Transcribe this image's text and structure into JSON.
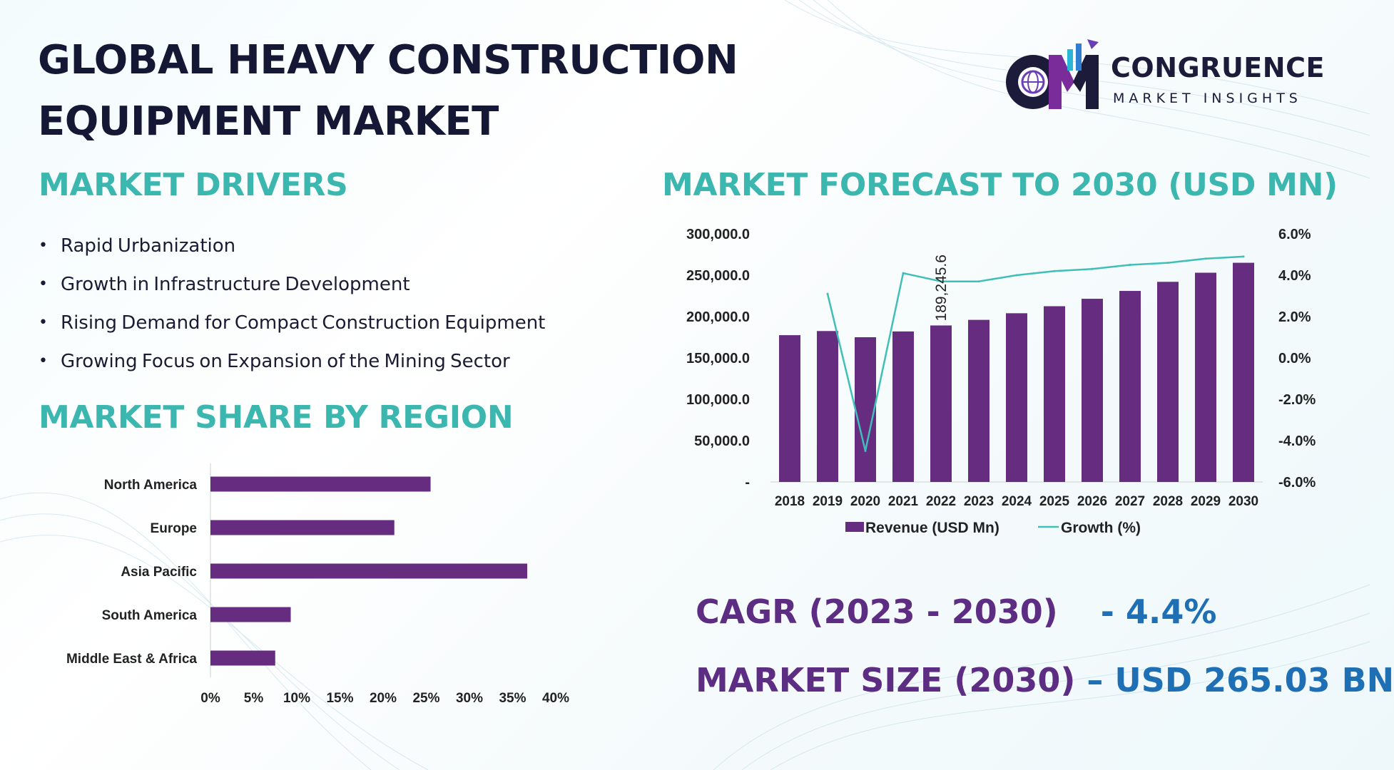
{
  "title": {
    "line1": "GLOBAL HEAVY CONSTRUCTION",
    "line2": "EQUIPMENT MARKET"
  },
  "logo": {
    "name": "CONGRUENCE",
    "tagline": "MARKET INSIGHTS"
  },
  "drivers": {
    "heading": "MARKET DRIVERS",
    "items": [
      "Rapid Urbanization",
      "Growth in Infrastructure Development",
      "Rising Demand for Compact Construction Equipment",
      "Growing Focus on Expansion of the Mining Sector"
    ]
  },
  "region": {
    "heading": "MARKET SHARE BY REGION"
  },
  "forecast": {
    "heading": "MARKET FORECAST TO 2030 (USD MN)"
  },
  "stats": {
    "cagr_label": "CAGR (2023 - 2030)",
    "cagr_value": "- 4.4%",
    "size_label": "MARKET SIZE (2030)",
    "size_value": "– USD 265.03 BN"
  },
  "colors": {
    "bar": "#652c80",
    "line": "#3fbfb8",
    "heading": "#3cb7b0",
    "title": "#141834",
    "stat_label": "#5c2d82",
    "stat_value": "#1f6fb5"
  },
  "chart_data": [
    {
      "type": "bar",
      "orientation": "horizontal",
      "title": "MARKET SHARE BY REGION",
      "categories": [
        "North America",
        "Europe",
        "Asia Pacific",
        "South America",
        "Middle East & Africa"
      ],
      "values": [
        25.5,
        21.3,
        36.7,
        9.3,
        7.5
      ],
      "xlim": [
        0,
        40
      ],
      "xticks": [
        "0%",
        "5%",
        "10%",
        "15%",
        "20%",
        "25%",
        "30%",
        "35%",
        "40%"
      ],
      "xtick_values": [
        0,
        5,
        10,
        15,
        20,
        25,
        30,
        35,
        40
      ]
    },
    {
      "type": "bar",
      "title": "MARKET FORECAST TO 2030 (USD MN)",
      "categories": [
        "2018",
        "2019",
        "2020",
        "2021",
        "2022",
        "2023",
        "2024",
        "2025",
        "2026",
        "2027",
        "2028",
        "2029",
        "2030"
      ],
      "series": [
        {
          "name": "Revenue (USD Mn)",
          "type": "bar",
          "axis": "left",
          "values": [
            177500,
            182500,
            175000,
            182000,
            189245.6,
            196000,
            204000,
            212500,
            221500,
            231000,
            242000,
            253000,
            265030
          ]
        },
        {
          "name": "Growth (%)",
          "type": "line",
          "axis": "right",
          "values": [
            null,
            3.1,
            -4.5,
            4.1,
            3.7,
            3.7,
            4.0,
            4.2,
            4.3,
            4.5,
            4.6,
            4.8,
            4.9
          ]
        }
      ],
      "data_labels": [
        {
          "category": "2022",
          "text": "189,245.6"
        }
      ],
      "ylim_left": [
        0,
        300000
      ],
      "yticks_left": [
        "-",
        "50,000.0",
        "100,000.0",
        "150,000.0",
        "200,000.0",
        "250,000.0",
        "300,000.0"
      ],
      "ytick_values_left": [
        0,
        50000,
        100000,
        150000,
        200000,
        250000,
        300000
      ],
      "ylim_right": [
        -6,
        6
      ],
      "yticks_right": [
        "-6.0%",
        "-4.0%",
        "-2.0%",
        "0.0%",
        "2.0%",
        "4.0%",
        "6.0%"
      ],
      "ytick_values_right": [
        -6,
        -4,
        -2,
        0,
        2,
        4,
        6
      ],
      "legend": "bottom"
    }
  ]
}
